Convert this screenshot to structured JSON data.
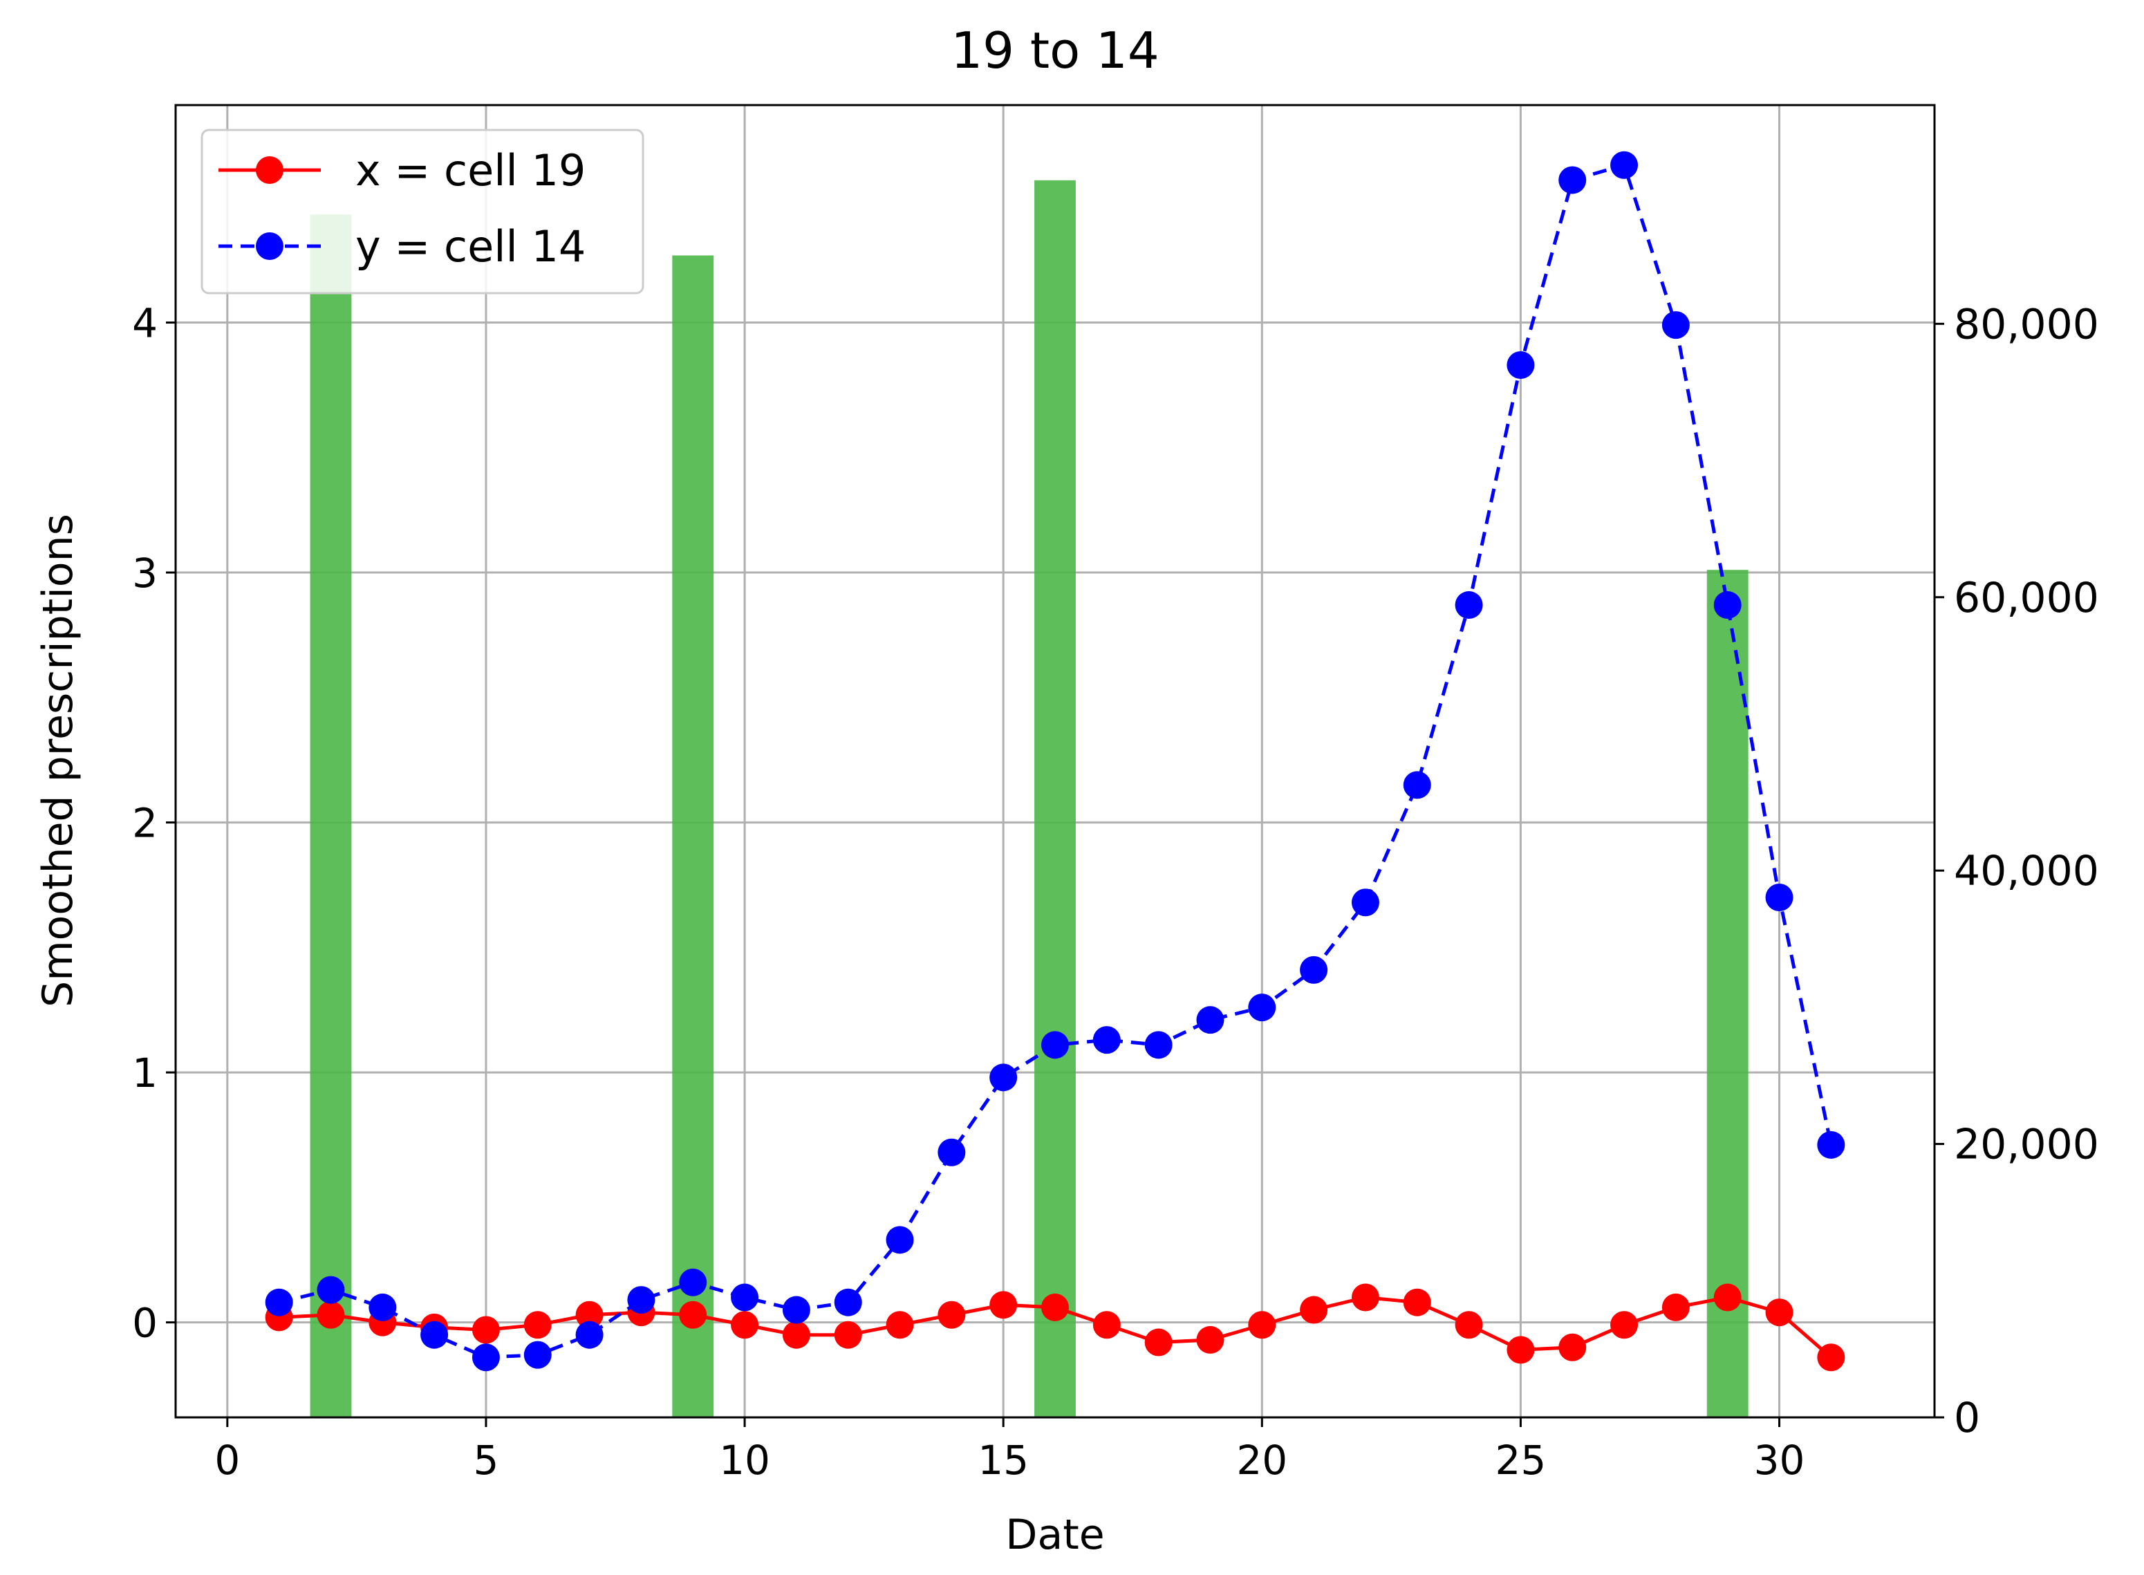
{
  "chart_data": {
    "type": "line",
    "title": "19 to 14",
    "xlabel": "Date",
    "ylabel": "Smoothed prescriptions",
    "y2label": "",
    "xlim": [
      -1,
      33
    ],
    "ylim": [
      -0.38,
      4.87
    ],
    "y2lim": [
      0,
      96000
    ],
    "x_ticks": [
      0,
      5,
      10,
      15,
      20,
      25,
      30
    ],
    "y_ticks": [
      0,
      1,
      2,
      3,
      4
    ],
    "y2_ticks": [
      0,
      20000,
      40000,
      60000,
      80000
    ],
    "y2_tick_labels": [
      "0",
      "20,000",
      "40,000",
      "60,000",
      "80,000"
    ],
    "grid": true,
    "legend_position": "top-left",
    "series": [
      {
        "name": "x = cell 19",
        "axis": "left",
        "style": "solid",
        "marker": "circle",
        "color": "#ff0000",
        "x": [
          1,
          2,
          3,
          4,
          5,
          6,
          7,
          8,
          9,
          10,
          11,
          12,
          13,
          14,
          15,
          16,
          17,
          18,
          19,
          20,
          21,
          22,
          23,
          24,
          25,
          26,
          27,
          28,
          29,
          30,
          31
        ],
        "y": [
          0.02,
          0.03,
          0.0,
          -0.02,
          -0.03,
          -0.01,
          0.03,
          0.04,
          0.03,
          -0.01,
          -0.05,
          -0.05,
          -0.01,
          0.03,
          0.07,
          0.06,
          -0.01,
          -0.08,
          -0.07,
          -0.01,
          0.05,
          0.1,
          0.08,
          -0.01,
          -0.11,
          -0.1,
          -0.01,
          0.06,
          0.1,
          0.04,
          -0.14
        ]
      },
      {
        "name": "y = cell 14",
        "axis": "left",
        "style": "dashed",
        "marker": "circle",
        "color": "#0000ff",
        "x": [
          1,
          2,
          3,
          4,
          5,
          6,
          7,
          8,
          9,
          10,
          11,
          12,
          13,
          14,
          15,
          16,
          17,
          18,
          19,
          20,
          21,
          22,
          23,
          24,
          25,
          26,
          27,
          28,
          29,
          30,
          31
        ],
        "y": [
          0.08,
          0.13,
          0.06,
          -0.05,
          -0.14,
          -0.13,
          -0.05,
          0.09,
          0.16,
          0.1,
          0.05,
          0.08,
          0.33,
          0.68,
          0.98,
          1.11,
          1.13,
          1.11,
          1.21,
          1.26,
          1.41,
          1.68,
          2.15,
          2.87,
          3.83,
          4.57,
          4.63,
          3.99,
          2.87,
          1.7,
          0.71
        ]
      }
    ],
    "bars": {
      "axis": "right",
      "color": "#4cb848",
      "x": [
        2,
        9,
        16,
        29
      ],
      "values": [
        88000,
        85000,
        90500,
        62000
      ]
    }
  }
}
